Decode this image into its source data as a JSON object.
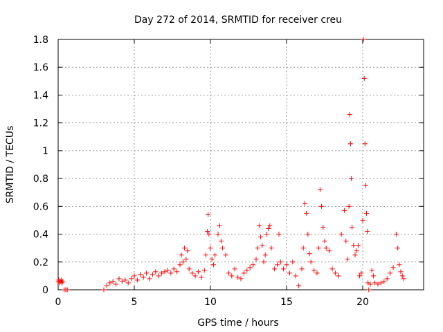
{
  "chart_data": {
    "type": "scatter",
    "title": "Day 272 of 2014, SRMTID for receiver creu",
    "xlabel": "GPS time / hours",
    "ylabel": "SRMTID / TECUs",
    "xlim": [
      0,
      24
    ],
    "ylim": [
      0,
      1.8
    ],
    "x_ticks": [
      0,
      5,
      10,
      15,
      20
    ],
    "y_ticks": [
      0,
      0.2,
      0.4,
      0.6,
      0.8,
      1.0,
      1.2,
      1.4,
      1.6,
      1.8
    ],
    "x_tick_labels": [
      "0",
      "5",
      "10",
      "15",
      "20"
    ],
    "y_tick_labels": [
      "0",
      "0.2",
      "0.4",
      "0.6",
      "0.8",
      "1",
      "1.2",
      "1.4",
      "1.6",
      "1.8"
    ],
    "grid": true,
    "marker": "+",
    "series": [
      {
        "name": "SRMTID",
        "color": "#ff0000",
        "x": [
          0.0,
          0.05,
          0.1,
          0.15,
          0.2,
          0.25,
          0.3,
          0.4,
          0.5,
          0.6,
          3.0,
          3.2,
          3.4,
          3.6,
          3.8,
          4.0,
          4.2,
          4.4,
          4.6,
          4.8,
          5.0,
          5.2,
          5.4,
          5.6,
          5.8,
          6.0,
          6.2,
          6.4,
          6.6,
          6.8,
          7.0,
          7.2,
          7.4,
          7.6,
          7.8,
          8.0,
          8.1,
          8.2,
          8.3,
          8.4,
          8.5,
          8.6,
          8.8,
          9.0,
          9.2,
          9.4,
          9.6,
          9.7,
          9.8,
          9.85,
          9.9,
          10.0,
          10.1,
          10.2,
          10.3,
          10.5,
          10.6,
          10.7,
          10.8,
          11.0,
          11.2,
          11.4,
          11.6,
          11.8,
          12.0,
          12.2,
          12.4,
          12.6,
          12.8,
          13.0,
          13.1,
          13.2,
          13.3,
          13.4,
          13.5,
          13.6,
          13.7,
          13.8,
          13.9,
          14.0,
          14.2,
          14.4,
          14.5,
          14.6,
          14.8,
          15.0,
          15.2,
          15.4,
          15.6,
          15.8,
          16.0,
          16.1,
          16.2,
          16.3,
          16.4,
          16.5,
          16.6,
          16.8,
          17.0,
          17.1,
          17.2,
          17.3,
          17.4,
          17.5,
          17.6,
          17.8,
          18.0,
          18.2,
          18.4,
          18.6,
          18.8,
          18.9,
          19.0,
          19.1,
          19.15,
          19.2,
          19.25,
          19.3,
          19.4,
          19.5,
          19.6,
          19.7,
          19.8,
          19.9,
          20.0,
          20.05,
          20.1,
          20.15,
          20.2,
          20.25,
          20.3,
          20.35,
          20.4,
          20.5,
          20.6,
          20.7,
          20.8,
          21.0,
          21.2,
          21.4,
          21.6,
          21.8,
          22.0,
          22.2,
          22.3,
          22.4,
          22.5,
          22.6,
          22.7
        ],
        "y": [
          0.06,
          0.07,
          0.05,
          0.06,
          0.07,
          0.05,
          0.06,
          0.0,
          0.0,
          0.0,
          0.0,
          0.03,
          0.05,
          0.06,
          0.04,
          0.08,
          0.06,
          0.07,
          0.05,
          0.08,
          0.1,
          0.07,
          0.11,
          0.09,
          0.12,
          0.08,
          0.11,
          0.13,
          0.1,
          0.12,
          0.13,
          0.14,
          0.12,
          0.15,
          0.13,
          0.18,
          0.25,
          0.2,
          0.3,
          0.22,
          0.28,
          0.15,
          0.12,
          0.1,
          0.13,
          0.09,
          0.14,
          0.25,
          0.42,
          0.54,
          0.4,
          0.3,
          0.22,
          0.18,
          0.25,
          0.4,
          0.46,
          0.35,
          0.3,
          0.25,
          0.12,
          0.1,
          0.15,
          0.09,
          0.08,
          0.12,
          0.14,
          0.16,
          0.18,
          0.22,
          0.3,
          0.46,
          0.38,
          0.32,
          0.2,
          0.25,
          0.4,
          0.44,
          0.46,
          0.3,
          0.15,
          0.18,
          0.4,
          0.2,
          0.15,
          0.18,
          0.12,
          0.2,
          0.1,
          0.03,
          0.15,
          0.3,
          0.62,
          0.55,
          0.4,
          0.26,
          0.2,
          0.14,
          0.12,
          0.3,
          0.72,
          0.6,
          0.45,
          0.35,
          0.3,
          0.28,
          0.15,
          0.12,
          0.1,
          0.4,
          0.57,
          0.35,
          0.22,
          0.6,
          1.26,
          1.05,
          0.8,
          0.45,
          0.32,
          0.25,
          0.28,
          0.32,
          0.1,
          0.12,
          0.5,
          1.8,
          1.52,
          1.05,
          0.75,
          0.55,
          0.42,
          0.05,
          0.0,
          0.04,
          0.14,
          0.1,
          0.05,
          0.04,
          0.05,
          0.06,
          0.08,
          0.12,
          0.16,
          0.4,
          0.3,
          0.18,
          0.13,
          0.1,
          0.08
        ]
      }
    ]
  }
}
